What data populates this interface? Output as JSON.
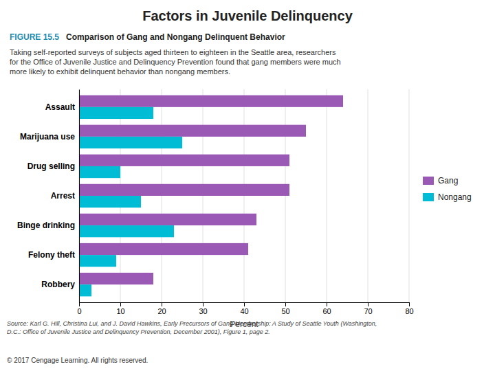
{
  "chart_data": {
    "type": "bar",
    "orientation": "horizontal",
    "title": "Factors in Juvenile Delinquency",
    "subtitle": "Comparison of Gang and Nongang Delinquent Behavior",
    "annotations": [
      "FIGURE 15.5",
      "Taking self-reported surveys of subjects aged thirteen to eighteen in the Seattle area, researchers\nfor the Office of Juvenile Justice and Delinquency Prevention found that gang members were much\nmore likely to exhibit delinquent behavior than nongang members.",
      "Source: Karl G. Hill, Christina Lui, and J. David Hawkins, Early Precursors of Gang Membership: A Study of Seattle Youth (Washington,\nD.C.: Office of Juvenile Justice and Delinquency Prevention, December 2001), Figure 1, page 2.",
      "© 2017 Cengage Learning. All rights reserved."
    ],
    "categories": [
      "Assault",
      "Marijuana use",
      "Drug selling",
      "Arrest",
      "Binge drinking",
      "Felony theft",
      "Robbery"
    ],
    "series": [
      {
        "name": "Gang",
        "color": "#9B59B6",
        "values": [
          64,
          55,
          51,
          51,
          43,
          41,
          18
        ]
      },
      {
        "name": "Nongang",
        "color": "#00BCD4",
        "values": [
          18,
          25,
          10,
          15,
          23,
          9,
          3
        ]
      }
    ],
    "xlabel": "Percent",
    "xlim": [
      0,
      80
    ],
    "xticks": [
      0,
      10,
      20,
      30,
      40,
      50,
      60,
      70,
      80
    ],
    "grid": true,
    "legend": "right"
  }
}
